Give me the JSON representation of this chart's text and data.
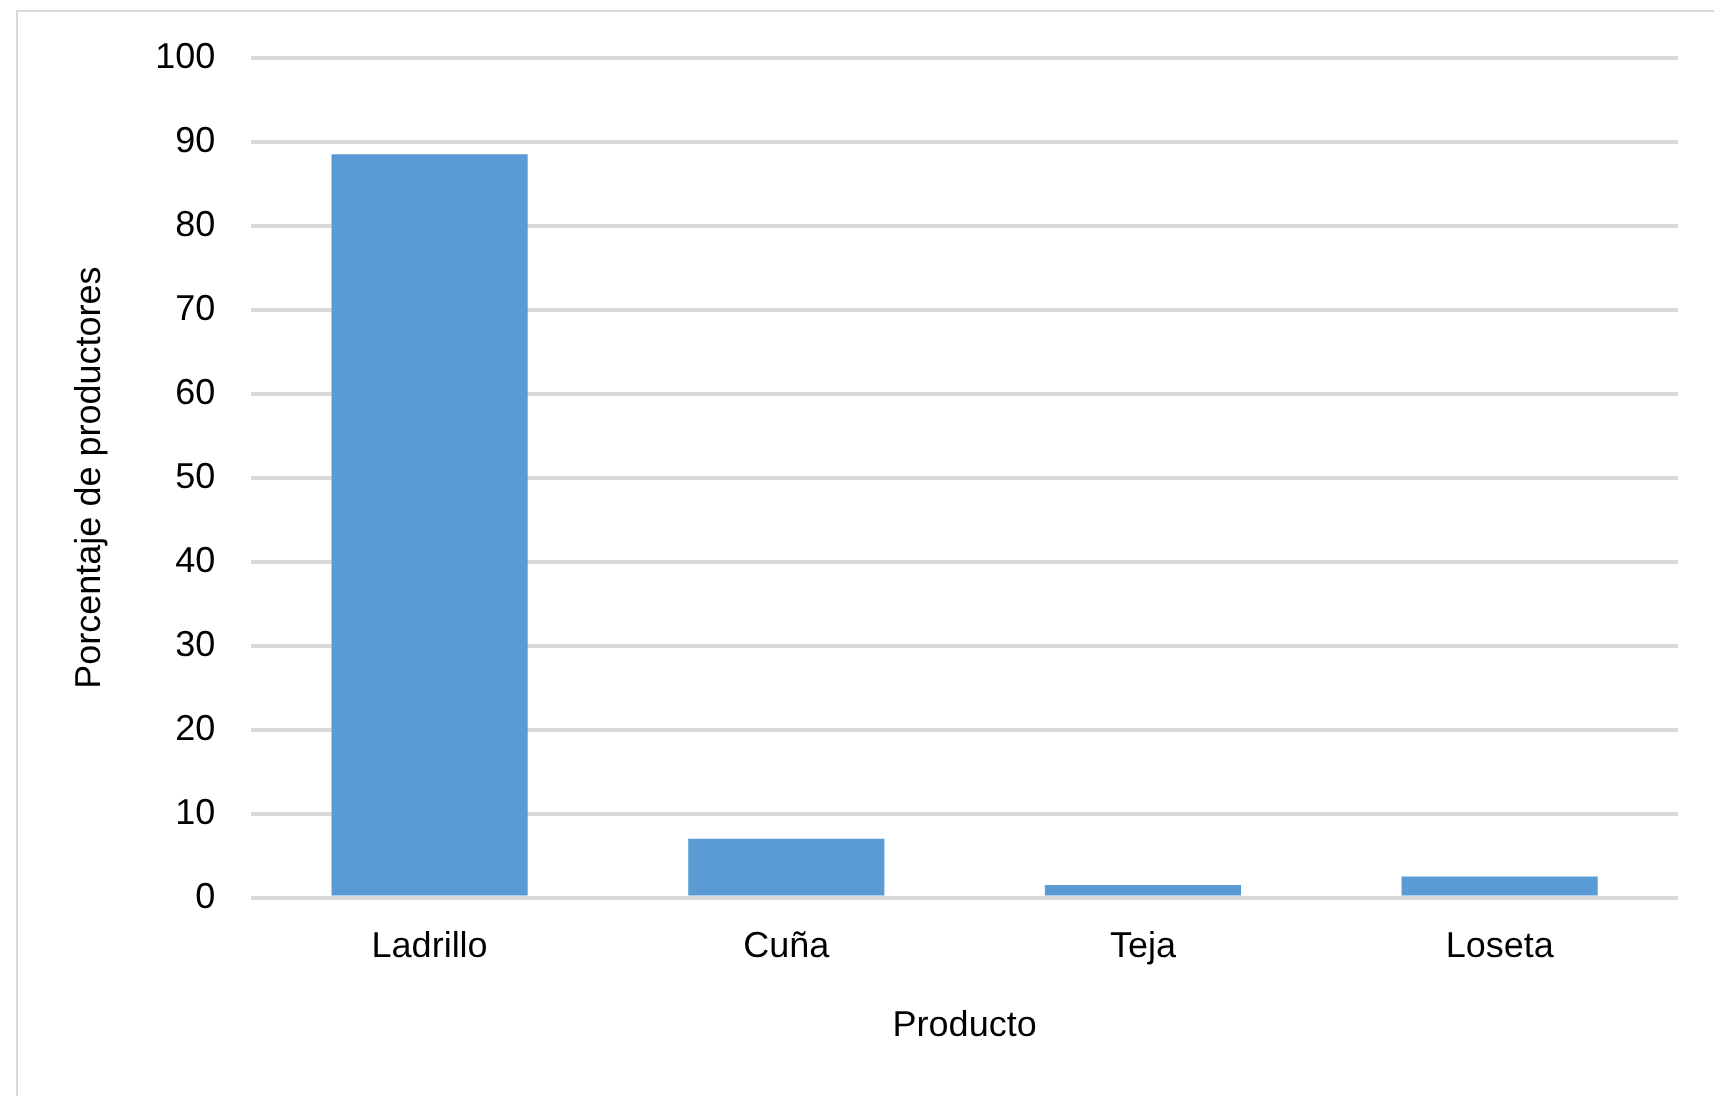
{
  "chart_data": {
    "type": "bar",
    "xlabel": "Producto",
    "ylabel": "Porcentaje de productores",
    "categories": [
      "Ladrillo",
      "Cuña",
      "Teja",
      "Loseta"
    ],
    "values": [
      88.5,
      7,
      1.5,
      2.5
    ],
    "color": "#5b9bd5",
    "ylim": [
      0,
      100
    ],
    "yticks": [
      0,
      10,
      20,
      30,
      40,
      50,
      60,
      70,
      80,
      90,
      100
    ],
    "grid": "y",
    "legend": false
  }
}
